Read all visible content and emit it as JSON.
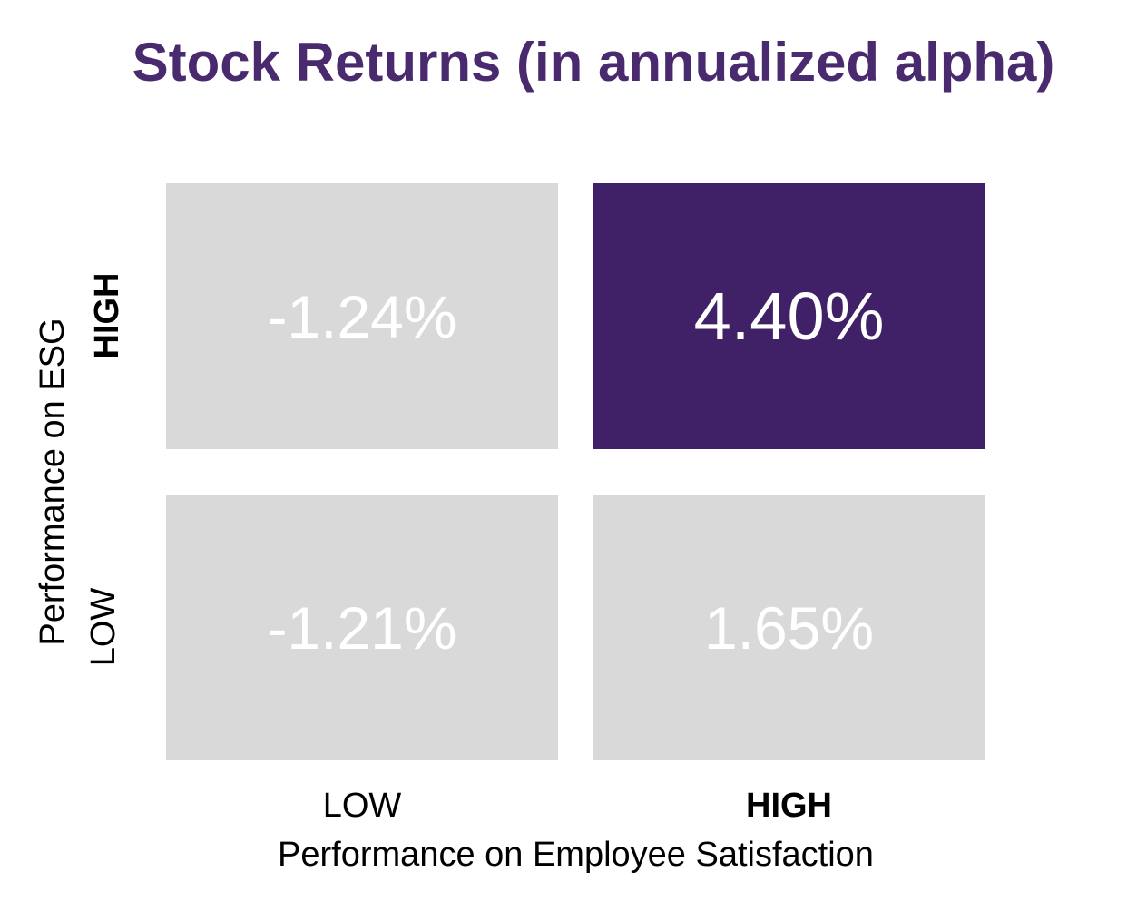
{
  "colors": {
    "background": "#ffffff",
    "title_text": "#4a2a6e",
    "highlight_cell_bg": "#402168",
    "default_cell_bg": "#d9d9d9",
    "cell_value_text": "#ffffff",
    "axis_text": "#000000"
  },
  "chart_data": {
    "type": "heatmap",
    "title": "Stock Returns (in annualized alpha)",
    "xlabel": "Performance on Employee Satisfaction",
    "ylabel": "Performance on ESG",
    "x_categories": [
      "LOW",
      "HIGH"
    ],
    "y_categories": [
      "HIGH",
      "LOW"
    ],
    "grid": false,
    "legend": "none",
    "cells": [
      {
        "y": "HIGH",
        "x": "LOW",
        "label": "-1.24%",
        "value": -1.24,
        "bg": "#d9d9d9",
        "highlighted": false
      },
      {
        "y": "HIGH",
        "x": "HIGH",
        "label": "4.40%",
        "value": 4.4,
        "bg": "#402168",
        "highlighted": true
      },
      {
        "y": "LOW",
        "x": "LOW",
        "label": "-1.21%",
        "value": -1.21,
        "bg": "#d9d9d9",
        "highlighted": false
      },
      {
        "y": "LOW",
        "x": "HIGH",
        "label": "1.65%",
        "value": 1.65,
        "bg": "#d9d9d9",
        "highlighted": false
      }
    ]
  }
}
